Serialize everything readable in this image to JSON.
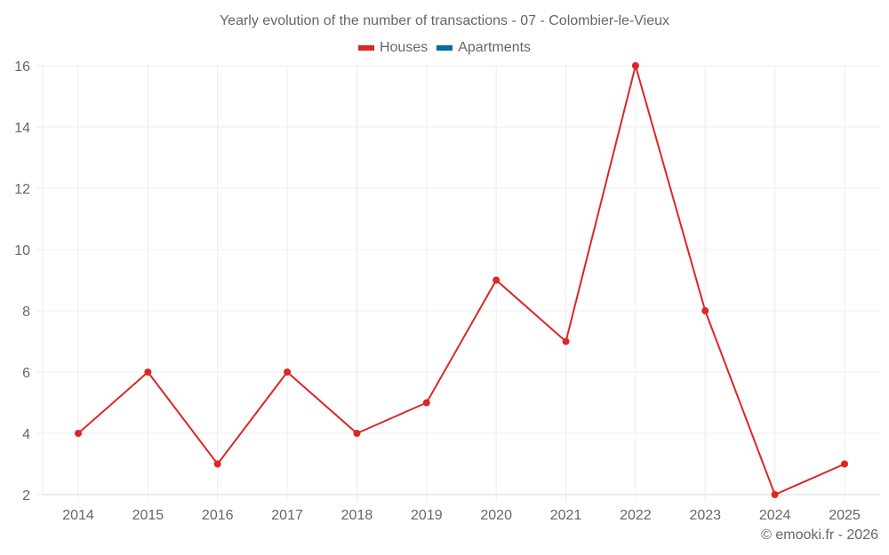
{
  "chart": {
    "title": "Yearly evolution of the number of transactions - 07 - Colombier-le-Vieux",
    "legend": [
      {
        "label": "Houses",
        "color": "#dc2626"
      },
      {
        "label": "Apartments",
        "color": "#0b6aa2"
      }
    ],
    "credit": "© emooki.fr - 2026"
  },
  "chart_data": {
    "type": "line",
    "title": "Yearly evolution of the number of transactions - 07 - Colombier-le-Vieux",
    "xlabel": "",
    "ylabel": "",
    "categories": [
      "2014",
      "2015",
      "2016",
      "2017",
      "2018",
      "2019",
      "2020",
      "2021",
      "2022",
      "2023",
      "2024",
      "2025"
    ],
    "series": [
      {
        "name": "Houses",
        "color": "#dc2626",
        "values": [
          4,
          6,
          3,
          6,
          4,
          5,
          9,
          7,
          16,
          8,
          2,
          3
        ]
      },
      {
        "name": "Apartments",
        "color": "#0b6aa2",
        "values": []
      }
    ],
    "yticks": [
      2,
      4,
      6,
      8,
      10,
      12,
      14,
      16
    ],
    "ylim": [
      2,
      16
    ],
    "grid": true,
    "legend_position": "top"
  }
}
